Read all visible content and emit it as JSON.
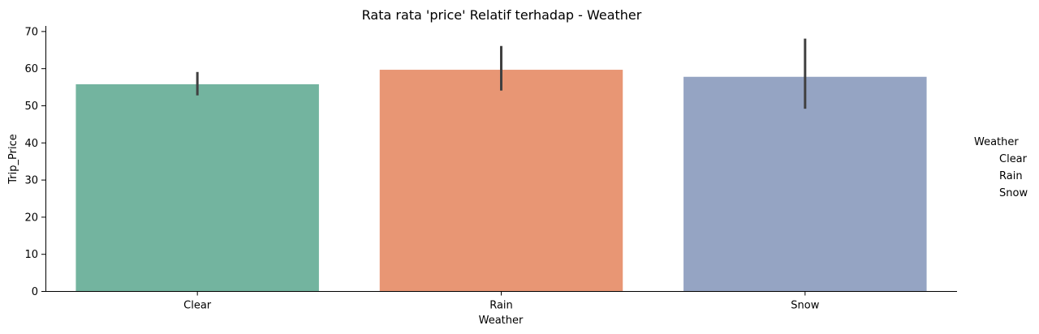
{
  "chart_data": {
    "type": "bar",
    "title": "Rata rata 'price' Relatif terhadap - Weather",
    "xlabel": "Weather",
    "ylabel": "Trip_Price",
    "categories": [
      "Clear",
      "Rain",
      "Snow"
    ],
    "values": [
      55.8,
      59.7,
      57.8
    ],
    "error_bars": [
      [
        52.8,
        59.1
      ],
      [
        54.1,
        66.1
      ],
      [
        49.2,
        68.1
      ]
    ],
    "colors": [
      "#73b49f",
      "#e89674",
      "#95a4c3"
    ],
    "error_bar_color": "#404040",
    "ylim": [
      0,
      71.5
    ],
    "yticks": [
      0,
      10,
      20,
      30,
      40,
      50,
      60,
      70
    ],
    "grid": false,
    "legend": {
      "title": "Weather",
      "placement": "right",
      "entries": [
        "Clear",
        "Rain",
        "Snow"
      ]
    }
  }
}
